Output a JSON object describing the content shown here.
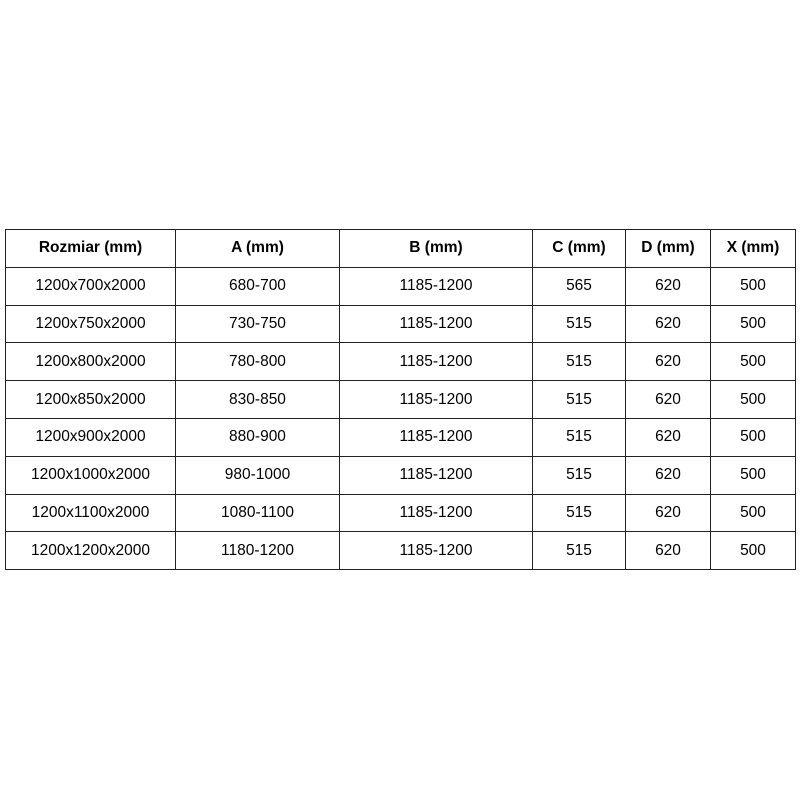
{
  "table": {
    "headers": [
      "Rozmiar (mm)",
      "A (mm)",
      "B (mm)",
      "C (mm)",
      "D (mm)",
      "X (mm)"
    ],
    "rows": [
      [
        "1200x700x2000",
        "680-700",
        "1185-1200",
        "565",
        "620",
        "500"
      ],
      [
        "1200x750x2000",
        "730-750",
        "1185-1200",
        "515",
        "620",
        "500"
      ],
      [
        "1200x800x2000",
        "780-800",
        "1185-1200",
        "515",
        "620",
        "500"
      ],
      [
        "1200x850x2000",
        "830-850",
        "1185-1200",
        "515",
        "620",
        "500"
      ],
      [
        "1200x900x2000",
        "880-900",
        "1185-1200",
        "515",
        "620",
        "500"
      ],
      [
        "1200x1000x2000",
        "980-1000",
        "1185-1200",
        "515",
        "620",
        "500"
      ],
      [
        "1200x1100x2000",
        "1080-1100",
        "1185-1200",
        "515",
        "620",
        "500"
      ],
      [
        "1200x1200x2000",
        "1180-1200",
        "1185-1200",
        "515",
        "620",
        "500"
      ]
    ]
  }
}
